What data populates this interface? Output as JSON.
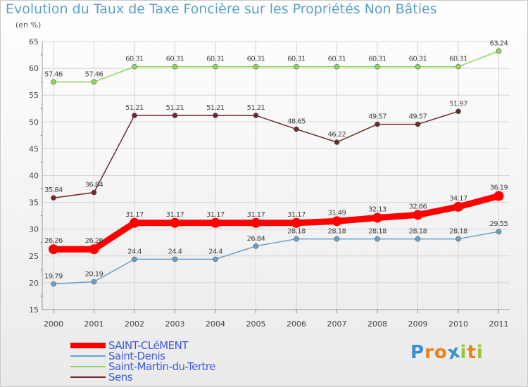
{
  "header": {
    "title": "Evolution du Taux de Taxe Foncière sur les Propriétés Non Bâties",
    "unit": "(en %)"
  },
  "logo": {
    "text": "Proxiti",
    "colors": [
      "#3a8fd0",
      "#e8821e",
      "#e8821e",
      "#3a8fd0",
      "#9ac53e",
      "#e8821e",
      "#9ac53e"
    ]
  },
  "chart_data": {
    "type": "line",
    "x": [
      "2000",
      "2001",
      "2002",
      "2003",
      "2004",
      "2005",
      "2006",
      "2007",
      "2008",
      "2009",
      "2010",
      "2011"
    ],
    "ylim": [
      15,
      65
    ],
    "yticks": [
      15,
      20,
      25,
      30,
      35,
      40,
      45,
      50,
      55,
      60,
      65
    ],
    "grid": true,
    "legend_position": "bottom-left",
    "series": [
      {
        "name": "SAINT-CLéMENT",
        "color": "#ff0000",
        "line_width": 9,
        "marker_size": 7,
        "values": [
          26.26,
          26.26,
          31.17,
          31.17,
          31.17,
          31.17,
          31.17,
          31.49,
          32.13,
          32.66,
          34.17,
          36.19
        ],
        "labels": [
          "26.26",
          "26.26",
          "31.17",
          "31.17",
          "31.17",
          "31.17",
          "31.17",
          "31.49",
          "32.13",
          "32.66",
          "34.17",
          "36.19"
        ]
      },
      {
        "name": "Saint-Denis",
        "color": "#6aa0c8",
        "line_width": 1.5,
        "marker_size": 3.5,
        "values": [
          19.79,
          20.19,
          24.4,
          24.4,
          24.4,
          26.84,
          28.18,
          28.18,
          28.18,
          28.18,
          28.18,
          29.55
        ],
        "labels": [
          "19.79",
          "20.19",
          "24.4",
          "24.4",
          "24.4",
          "26.84",
          "28.18",
          "28.18",
          "28.18",
          "28.18",
          "28.18",
          "29.55"
        ]
      },
      {
        "name": "Saint-Martin-du-Tertre",
        "color": "#8ed65a",
        "line_width": 1.5,
        "marker_size": 3.5,
        "values": [
          57.46,
          57.46,
          60.31,
          60.31,
          60.31,
          60.31,
          60.31,
          60.31,
          60.31,
          60.31,
          60.31,
          63.24
        ],
        "labels": [
          "57.46",
          "57.46",
          "60.31",
          "60.31",
          "60.31",
          "60.31",
          "60.31",
          "60.31",
          "60.31",
          "60.31",
          "60.31",
          "63.24"
        ]
      },
      {
        "name": "Sens",
        "color": "#6e2a2a",
        "line_width": 1.5,
        "marker_size": 3.5,
        "values": [
          35.84,
          36.84,
          51.21,
          51.21,
          51.21,
          51.21,
          48.65,
          46.22,
          49.57,
          49.57,
          51.97,
          null
        ],
        "labels": [
          "35.84",
          "36.84",
          "51.21",
          "51.21",
          "51.21",
          "51.21",
          "48.65",
          "46.22",
          "49.57",
          "49.57",
          "51.97",
          null
        ]
      }
    ]
  }
}
